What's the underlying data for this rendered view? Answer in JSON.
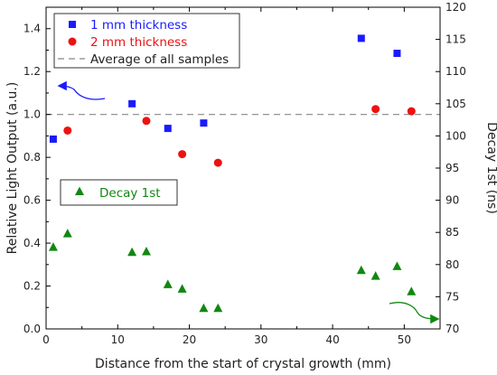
{
  "chart_data": {
    "type": "scatter",
    "xlabel": "Distance from the start of crystal growth (mm)",
    "ylabel_left": "Relative Light Output (a.u.)",
    "ylabel_right": "Decay 1st (ns)",
    "xlim": [
      0,
      55
    ],
    "ylim_left": [
      0,
      1.5
    ],
    "ylim_right": [
      70,
      120
    ],
    "x_ticks": [
      "0",
      "10",
      "20",
      "30",
      "40",
      "50"
    ],
    "y_left_ticks": [
      "0.0",
      "0.2",
      "0.4",
      "0.6",
      "0.8",
      "1.0",
      "1.2",
      "1.4"
    ],
    "y_right_ticks": [
      "70",
      "75",
      "80",
      "85",
      "90",
      "95",
      "100",
      "105",
      "110",
      "115",
      "120"
    ],
    "grid": false,
    "series": [
      {
        "name": "1 mm thickness",
        "axis": "left",
        "marker": "square",
        "color": "#1a1aff",
        "x": [
          1,
          12,
          17,
          22,
          44,
          49
        ],
        "y": [
          0.885,
          1.05,
          0.935,
          0.96,
          1.355,
          1.285
        ]
      },
      {
        "name": "2 mm thickness",
        "axis": "left",
        "marker": "circle",
        "color": "#ee1111",
        "x": [
          3,
          14,
          19,
          24,
          46,
          51
        ],
        "y": [
          0.925,
          0.97,
          0.815,
          0.775,
          1.025,
          1.015
        ]
      },
      {
        "name": "Decay 1st",
        "axis": "right",
        "marker": "triangle",
        "color": "#118811",
        "x": [
          1,
          3,
          12,
          14,
          17,
          19,
          22,
          24,
          44,
          46,
          49,
          51
        ],
        "y": [
          82.7,
          84.8,
          81.9,
          82.0,
          76.9,
          76.2,
          73.2,
          73.2,
          79.1,
          78.2,
          79.7,
          75.8
        ]
      }
    ],
    "reference_line": {
      "label": "Average of all samples",
      "axis": "left",
      "y": 1.0,
      "color": "#888888"
    },
    "legend_main_position": "top-left",
    "legend_decay_position": "middle-left"
  }
}
